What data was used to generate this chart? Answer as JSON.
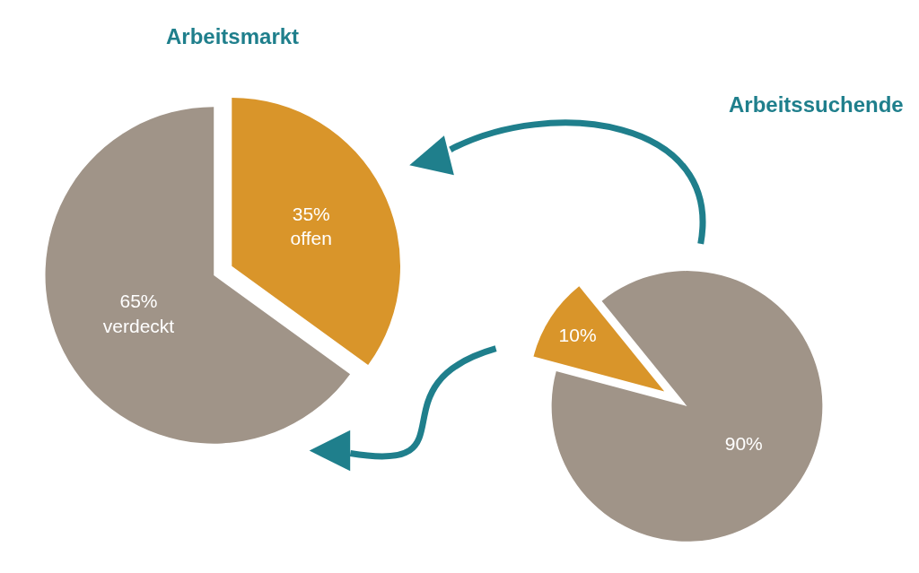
{
  "chart_data": [
    {
      "type": "pie",
      "title": "Arbeitsmarkt",
      "categories": [
        "offen",
        "verdeckt"
      ],
      "values": [
        35,
        65
      ],
      "colors": [
        "#d9952a",
        "#a09488"
      ],
      "value_labels": [
        "35%",
        "65%"
      ]
    },
    {
      "type": "pie",
      "title": "Arbeitssuchende",
      "categories": [
        null,
        null
      ],
      "values": [
        10,
        90
      ],
      "colors": [
        "#d9952a",
        "#a09488"
      ],
      "value_labels": [
        "10%",
        "90%"
      ]
    }
  ]
}
